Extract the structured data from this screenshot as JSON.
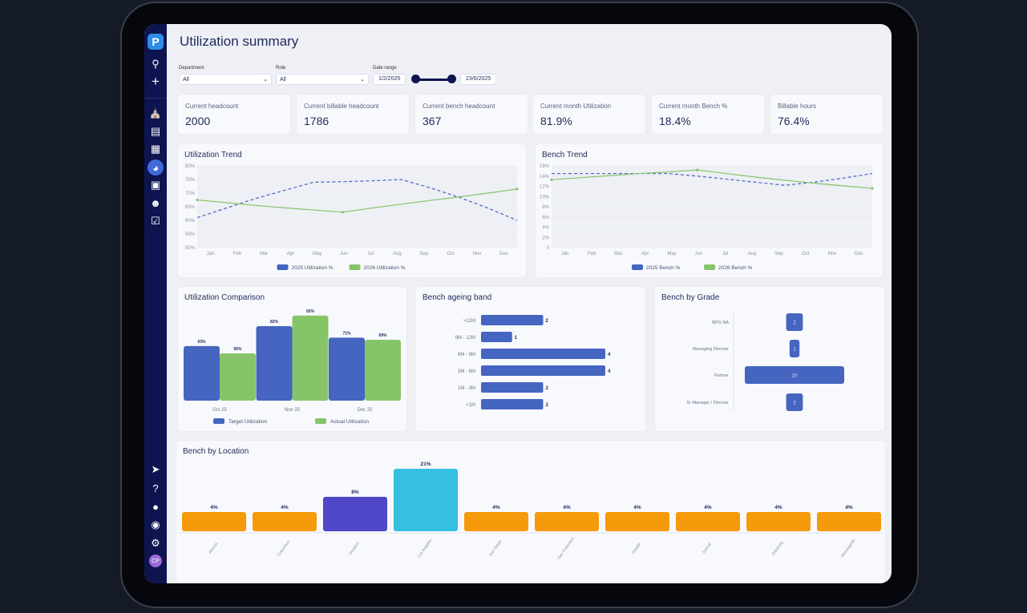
{
  "header": {
    "title": "Utilization summary"
  },
  "filters": {
    "department_label": "Department",
    "department_value": "All",
    "role_label": "Role",
    "role_value": "All",
    "date_label": "Date range",
    "date_start": "1/2/2025",
    "date_end": "23/6/2025"
  },
  "sidebar": {
    "logo": "P",
    "avatar": "CP",
    "icons": [
      "search-icon",
      "plus-icon",
      "store-icon",
      "book-icon",
      "file-icon",
      "pie-chart-icon",
      "document-icon",
      "users-icon",
      "calendar-check-icon",
      "rocket-icon",
      "help-icon",
      "chat-icon",
      "globe-icon",
      "gear-icon"
    ]
  },
  "kpis": [
    {
      "label": "Current headcount",
      "value": "2000"
    },
    {
      "label": "Current billable headcount",
      "value": "1786"
    },
    {
      "label": "Current bench headcount",
      "value": "367"
    },
    {
      "label": "Current month Utilization",
      "value": "81.9%"
    },
    {
      "label": "Current month Bench %",
      "value": "18.4%"
    },
    {
      "label": "Billable hours",
      "value": "76.4%"
    }
  ],
  "colors": {
    "blue": "#4565c0",
    "green": "#86c46a",
    "orange": "#f59a0a",
    "indigo": "#4f46c8",
    "cyan": "#35bfe0"
  },
  "chart_data": [
    {
      "id": "util_trend",
      "type": "line",
      "title": "Utilization Trend",
      "categories": [
        "Jan",
        "Feb",
        "Mar",
        "Apr",
        "May",
        "Jun",
        "Jul",
        "Aug",
        "Sep",
        "Oct",
        "Nov",
        "Dec"
      ],
      "ylim": [
        50,
        80
      ],
      "yticks": [
        "50%",
        "55%",
        "60%",
        "65%",
        "70%",
        "75%",
        "80%"
      ],
      "series": [
        {
          "name": "2025 Utilization %",
          "values": [
            61,
            64.5,
            68,
            71,
            74,
            74.2,
            74.5,
            75,
            72,
            68.5,
            64.5,
            60
          ],
          "style": "dashed"
        },
        {
          "name": "2026 Utilization %",
          "values": [
            67.5,
            66.5,
            65.5,
            64.6,
            63.8,
            63,
            64.5,
            65.9,
            67.3,
            68.6,
            70,
            71.5
          ]
        }
      ]
    },
    {
      "id": "bench_trend",
      "type": "line",
      "title": "Bench Trend",
      "categories": [
        "Jan",
        "Feb",
        "Mar",
        "Apr",
        "May",
        "Jun",
        "Jul",
        "Aug",
        "Sep",
        "Oct",
        "Nov",
        "Dec"
      ],
      "ylim": [
        0,
        16
      ],
      "yticks": [
        "0",
        "2%",
        "4%",
        "6%",
        "8%",
        "10%",
        "12%",
        "14%",
        "16%"
      ],
      "series": [
        {
          "name": "2025 Bench %",
          "values": [
            14.5,
            14.5,
            14.5,
            14.5,
            14.5,
            14,
            13.4,
            12.8,
            12.2,
            12.8,
            13.6,
            14.5
          ],
          "style": "dashed"
        },
        {
          "name": "2026 Bench %",
          "values": [
            13.3,
            13.7,
            14.1,
            14.5,
            14.8,
            15.2,
            14.5,
            13.8,
            13.2,
            12.6,
            12.1,
            11.6
          ]
        }
      ]
    },
    {
      "id": "util_comparison",
      "type": "bar",
      "title": "Utilization Comparison",
      "categories": [
        "Oct 25",
        "Nov 25",
        "Dec 25"
      ],
      "series": [
        {
          "name": "Target Utilization",
          "values": [
            63,
            82,
            71
          ]
        },
        {
          "name": "Actual Utilization",
          "values": [
            56,
            92,
            69
          ]
        }
      ]
    },
    {
      "id": "bench_ageing",
      "type": "bar",
      "title": "Bench ageing band",
      "categories": [
        ">12M",
        "9M - 12M",
        "6M - 9M",
        "3M - 6M",
        "1M - 3M",
        "<1M"
      ],
      "values": [
        2,
        1,
        4,
        4,
        2,
        2
      ]
    },
    {
      "id": "bench_grade",
      "type": "bar",
      "title": "Bench by Grade",
      "categories": [
        "BPG NA",
        "Managing Director",
        "Partner",
        "Sr Manager / Director"
      ],
      "values": [
        2,
        1,
        10,
        2
      ]
    },
    {
      "id": "bench_location",
      "type": "bar",
      "title": "Bench by Location",
      "categories": [
        "Atlanta",
        "Columbus",
        "Houston",
        "Los Angeles",
        "San Diego",
        "San Francisco",
        "Seattle",
        "Detroit",
        "Pittsburg",
        "Minneapolis"
      ],
      "values": [
        4,
        4,
        8,
        21,
        4,
        4,
        4,
        4,
        4,
        4
      ],
      "labels": [
        "4%",
        "4%",
        "8%",
        "21%",
        "4%",
        "4%",
        "4%",
        "4%",
        "4%",
        "4%"
      ]
    }
  ]
}
